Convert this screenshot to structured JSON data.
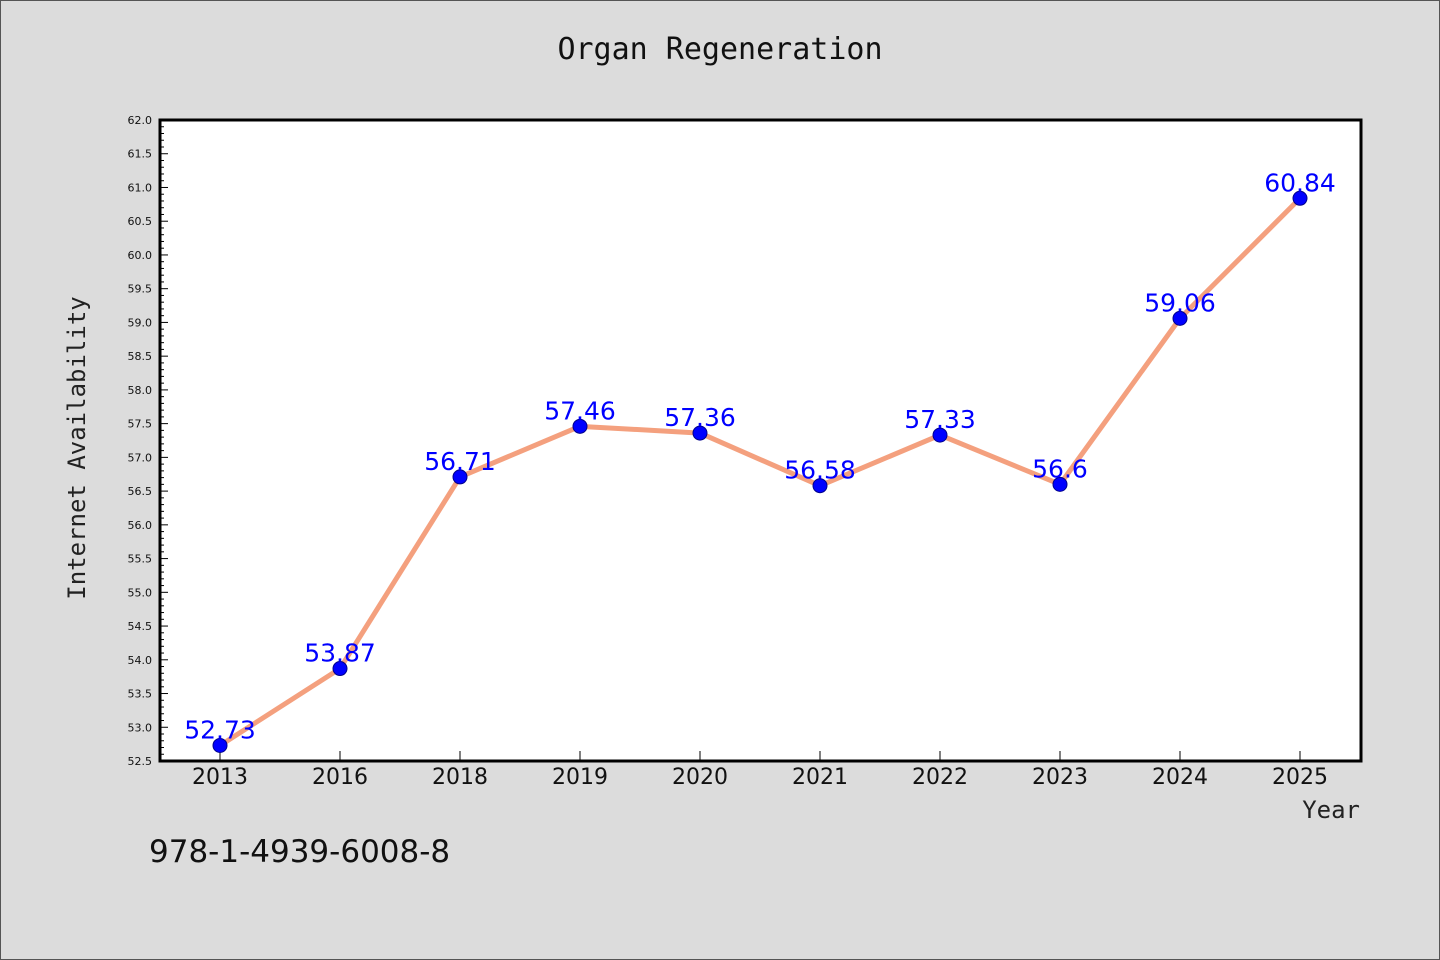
{
  "title": "Organ Regeneration",
  "footnote": "978-1-4939-6008-8",
  "colors": {
    "background": "#dcdcdc",
    "plot_background": "#ffffff",
    "line": "#f4a07e",
    "marker": "#0000ff",
    "data_label": "#0000ff"
  },
  "chart_data": {
    "type": "line",
    "title": "Organ Regeneration",
    "xlabel": "Year",
    "ylabel": "Internet Availability",
    "categories": [
      "2013",
      "2016",
      "2018",
      "2019",
      "2020",
      "2021",
      "2022",
      "2023",
      "2024",
      "2025"
    ],
    "series": [
      {
        "values": [
          52.73,
          53.87,
          56.71,
          57.46,
          57.36,
          56.58,
          57.33,
          56.6,
          59.06,
          60.84
        ],
        "labels": [
          "52.73",
          "53.87",
          "56.71",
          "57.46",
          "57.36",
          "56.58",
          "57.33",
          "56.6",
          "59.06",
          "60.84"
        ]
      }
    ],
    "ylim": [
      52.5,
      62.0
    ],
    "yticks": [
      "52.5",
      "53.0",
      "53.5",
      "54.0",
      "54.5",
      "55.0",
      "55.5",
      "56.0",
      "56.5",
      "57.0",
      "57.5",
      "58.0",
      "58.5",
      "59.0",
      "59.5",
      "60.0",
      "60.5",
      "61.0",
      "61.5",
      "62.0"
    ],
    "grid": false,
    "legend": "none"
  }
}
